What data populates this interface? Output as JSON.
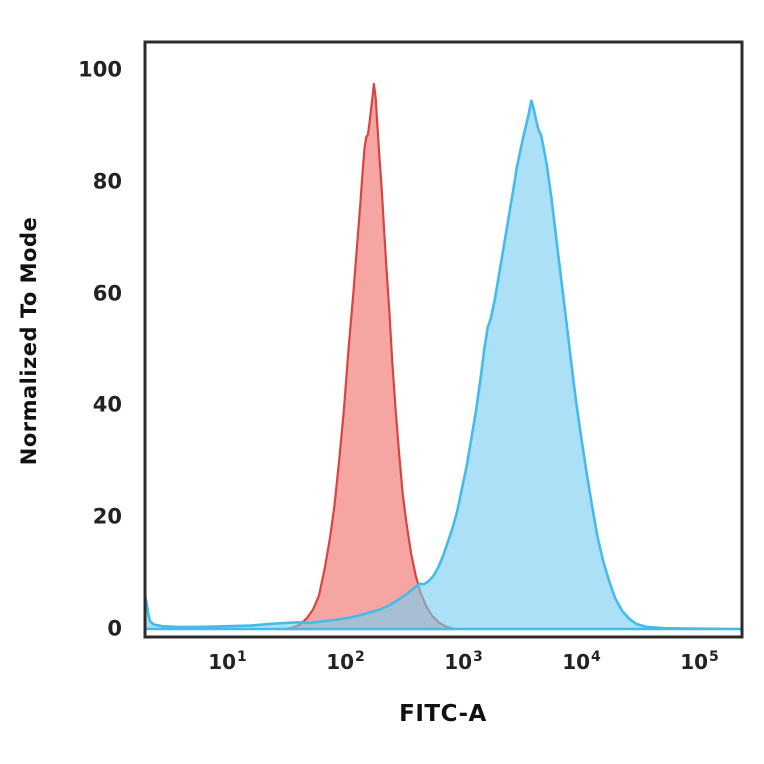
{
  "colors": {
    "background": "#ffffff",
    "frame": "#2b2b2b",
    "tick_text": "#222222",
    "axis_title_text": "#111111",
    "red_fill": "rgba(236,93,87,0.55)",
    "red_stroke": "#d84540",
    "blue_fill": "rgba(120,205,240,0.62)",
    "blue_stroke": "#46bbe9",
    "overlap_observed": "#a3b4c4"
  },
  "chart_data": {
    "type": "area",
    "subtype": "flow-cytometry-histogram-overlay",
    "title": "",
    "xlabel": "FITC-A",
    "ylabel": "Normalized To Mode",
    "x_scale": "log10",
    "xlim_log": [
      0.305,
      5.36
    ],
    "ylim": [
      0,
      105
    ],
    "grid": false,
    "legend": null,
    "y_ticks": [
      {
        "label": "0",
        "value": 0
      },
      {
        "label": "20",
        "value": 20
      },
      {
        "label": "40",
        "value": 40
      },
      {
        "label": "60",
        "value": 60
      },
      {
        "label": "80",
        "value": 80
      },
      {
        "label": "100",
        "value": 100
      }
    ],
    "x_ticks": [
      {
        "base": "10",
        "exp": "1",
        "log": 1
      },
      {
        "base": "10",
        "exp": "2",
        "log": 2
      },
      {
        "base": "10",
        "exp": "3",
        "log": 3
      },
      {
        "base": "10",
        "exp": "4",
        "log": 4
      },
      {
        "base": "10",
        "exp": "5",
        "log": 5
      }
    ],
    "series": [
      {
        "name": "red-peak",
        "description": "red histogram, mode ~1.8e2, peak height ~97",
        "fill": "rgba(236,93,87,0.55)",
        "stroke": "#d84540",
        "stroke_width": 2.2,
        "points": [
          [
            1.5,
            0
          ],
          [
            1.56,
            0.3
          ],
          [
            1.62,
            0.8
          ],
          [
            1.68,
            2
          ],
          [
            1.73,
            3.5
          ],
          [
            1.78,
            6
          ],
          [
            1.83,
            11
          ],
          [
            1.87,
            16
          ],
          [
            1.91,
            22
          ],
          [
            1.95,
            30
          ],
          [
            1.99,
            39
          ],
          [
            2.03,
            50
          ],
          [
            2.07,
            60
          ],
          [
            2.1,
            68
          ],
          [
            2.13,
            76
          ],
          [
            2.15,
            82
          ],
          [
            2.165,
            86
          ],
          [
            2.18,
            88
          ],
          [
            2.195,
            88.5
          ],
          [
            2.21,
            91
          ],
          [
            2.23,
            94.5
          ],
          [
            2.245,
            97.5
          ],
          [
            2.26,
            95
          ],
          [
            2.275,
            90
          ],
          [
            2.29,
            85
          ],
          [
            2.31,
            79
          ],
          [
            2.33,
            72
          ],
          [
            2.35,
            65
          ],
          [
            2.375,
            57
          ],
          [
            2.4,
            48
          ],
          [
            2.43,
            39
          ],
          [
            2.46,
            31
          ],
          [
            2.49,
            24
          ],
          [
            2.52,
            19
          ],
          [
            2.56,
            13.5
          ],
          [
            2.6,
            9.5
          ],
          [
            2.64,
            6.5
          ],
          [
            2.69,
            4
          ],
          [
            2.74,
            2.3
          ],
          [
            2.8,
            1.1
          ],
          [
            2.86,
            0.4
          ],
          [
            2.93,
            0
          ]
        ]
      },
      {
        "name": "blue-peak",
        "description": "cyan histogram, mode ~3.8e3, peak height ~94, edge spike at left axis",
        "fill": "rgba(120,205,240,0.62)",
        "stroke": "#46bbe9",
        "stroke_width": 2.6,
        "points": [
          [
            0.305,
            6
          ],
          [
            0.32,
            4.5
          ],
          [
            0.335,
            2.5
          ],
          [
            0.35,
            1.3
          ],
          [
            0.38,
            0.8
          ],
          [
            0.45,
            0.5
          ],
          [
            0.6,
            0.35
          ],
          [
            0.8,
            0.4
          ],
          [
            1.0,
            0.5
          ],
          [
            1.2,
            0.6
          ],
          [
            1.35,
            0.9
          ],
          [
            1.5,
            1.1
          ],
          [
            1.6,
            1.2
          ],
          [
            1.7,
            1.1
          ],
          [
            1.8,
            1.35
          ],
          [
            1.9,
            1.6
          ],
          [
            2.0,
            1.9
          ],
          [
            2.1,
            2.3
          ],
          [
            2.2,
            2.9
          ],
          [
            2.3,
            3.5
          ],
          [
            2.38,
            4.3
          ],
          [
            2.45,
            5.2
          ],
          [
            2.52,
            6.2
          ],
          [
            2.58,
            7.2
          ],
          [
            2.63,
            8.1
          ],
          [
            2.67,
            8.0
          ],
          [
            2.71,
            8.6
          ],
          [
            2.75,
            9.5
          ],
          [
            2.79,
            11
          ],
          [
            2.83,
            13
          ],
          [
            2.87,
            15.5
          ],
          [
            2.91,
            18
          ],
          [
            2.95,
            21
          ],
          [
            2.99,
            25
          ],
          [
            3.03,
            29
          ],
          [
            3.07,
            34
          ],
          [
            3.11,
            39
          ],
          [
            3.15,
            45
          ],
          [
            3.18,
            50
          ],
          [
            3.21,
            54
          ],
          [
            3.235,
            55.5
          ],
          [
            3.27,
            59
          ],
          [
            3.31,
            64
          ],
          [
            3.35,
            69
          ],
          [
            3.39,
            74
          ],
          [
            3.43,
            79
          ],
          [
            3.455,
            82.5
          ],
          [
            3.47,
            84
          ],
          [
            3.51,
            88
          ],
          [
            3.55,
            91.5
          ],
          [
            3.58,
            94.5
          ],
          [
            3.6,
            93
          ],
          [
            3.625,
            90.5
          ],
          [
            3.645,
            89
          ],
          [
            3.66,
            88.5
          ],
          [
            3.68,
            86.5
          ],
          [
            3.71,
            83
          ],
          [
            3.75,
            77
          ],
          [
            3.79,
            70
          ],
          [
            3.83,
            63
          ],
          [
            3.87,
            56
          ],
          [
            3.91,
            49
          ],
          [
            3.95,
            42
          ],
          [
            3.99,
            36
          ],
          [
            4.04,
            29
          ],
          [
            4.09,
            22.5
          ],
          [
            4.14,
            16.5
          ],
          [
            4.19,
            12
          ],
          [
            4.24,
            8.5
          ],
          [
            4.29,
            5.5
          ],
          [
            4.35,
            3.2
          ],
          [
            4.41,
            1.8
          ],
          [
            4.47,
            0.9
          ],
          [
            4.55,
            0.4
          ],
          [
            4.7,
            0.15
          ],
          [
            5.0,
            0.05
          ],
          [
            5.36,
            0
          ]
        ]
      }
    ]
  }
}
